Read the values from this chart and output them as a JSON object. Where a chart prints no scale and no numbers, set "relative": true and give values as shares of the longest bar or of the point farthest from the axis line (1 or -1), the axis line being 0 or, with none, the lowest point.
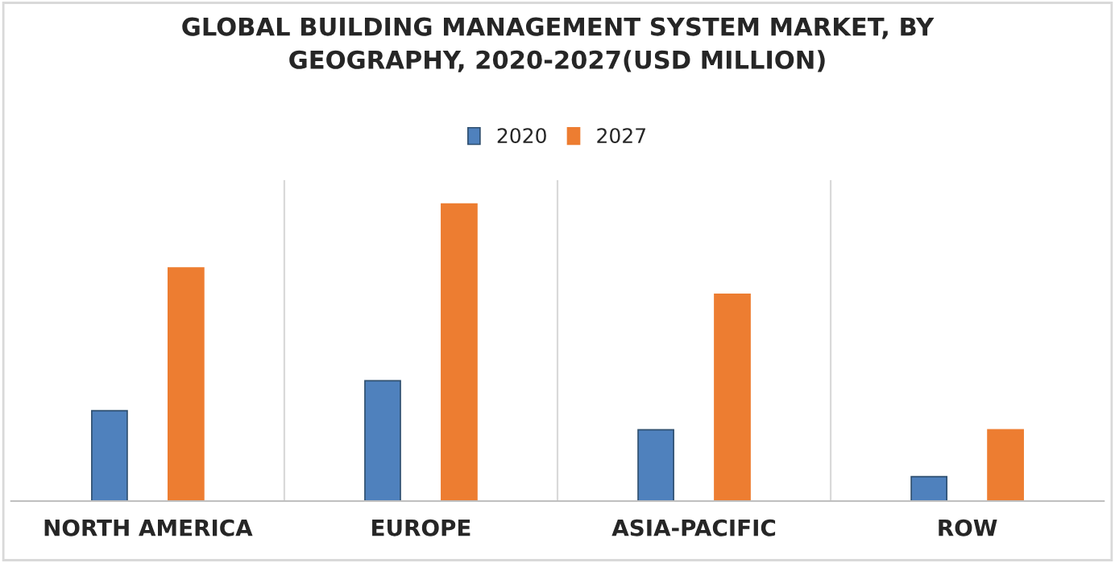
{
  "chart_data": {
    "type": "bar",
    "title": "GLOBAL BUILDING MANAGEMENT SYSTEM MARKET, BY\nGEOGRAPHY, 2020-2027(USD MILLION)",
    "categories": [
      "NORTH AMERICA",
      "EUROPE",
      "ASIA-PACIFIC",
      "ROW"
    ],
    "relative": true,
    "series": [
      {
        "name": "2020",
        "color": "#4f81bd",
        "values": [
          0.304,
          0.405,
          0.24,
          0.082
        ]
      },
      {
        "name": "2027",
        "color": "#ed7d31",
        "values": [
          0.785,
          1,
          0.696,
          0.24
        ]
      }
    ],
    "legend": "top",
    "grid": false
  }
}
